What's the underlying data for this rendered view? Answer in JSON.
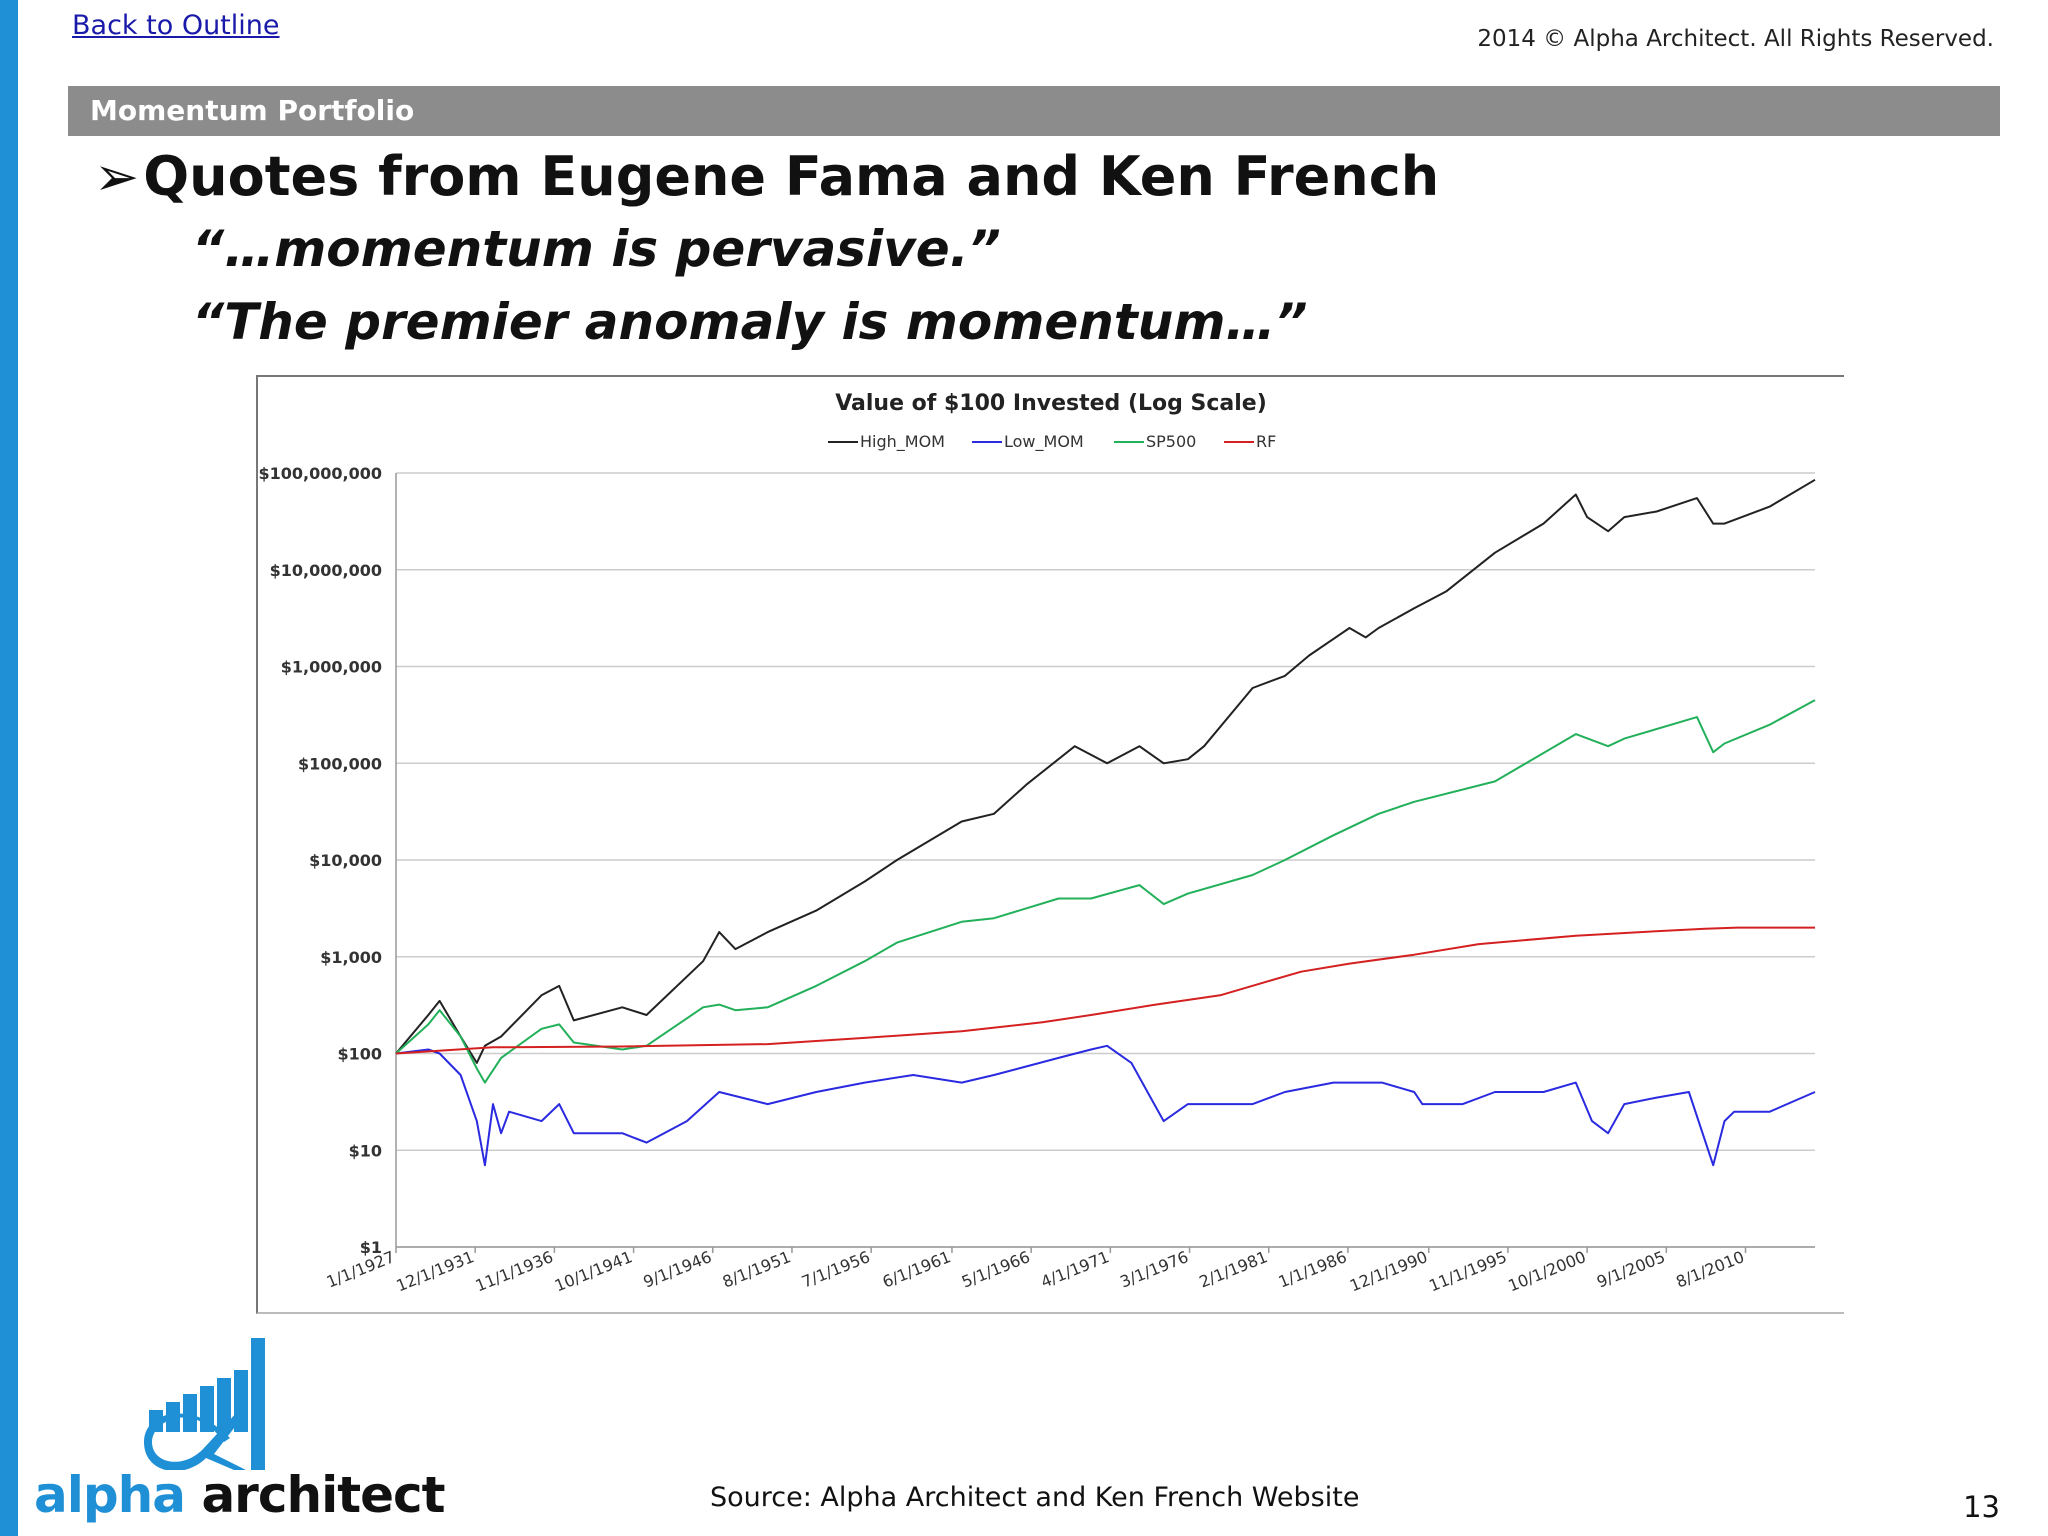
{
  "header": {
    "back_link": "Back to Outline",
    "copyright": "2014 © Alpha Architect. All Rights Reserved."
  },
  "section": {
    "title": "Momentum Portfolio"
  },
  "content": {
    "bullet": "➢",
    "heading": "Quotes from Eugene Fama and Ken French",
    "quote1": "“…momentum is pervasive.”",
    "quote2": "“The premier anomaly is momentum…”"
  },
  "footer": {
    "source": "Source: Alpha Architect and Ken French Website",
    "page_number": "13",
    "logo_alpha": "alpha",
    "logo_architect": "architect"
  },
  "colors": {
    "accent": "#1f8fd6",
    "section_bar": "#8c8c8c",
    "High_MOM": "#222222",
    "Low_MOM": "#2a2ae0",
    "SP500": "#23b05a",
    "RF": "#d42020"
  },
  "chart_data": {
    "type": "line",
    "title": "Value of $100 Invested (Log Scale)",
    "y_scale": "log",
    "ylim": [
      1,
      100000000
    ],
    "y_ticks": [
      {
        "value": 100000000,
        "label": "$100,000,000"
      },
      {
        "value": 10000000,
        "label": "$10,000,000"
      },
      {
        "value": 1000000,
        "label": "$1,000,000"
      },
      {
        "value": 100000,
        "label": "$100,000"
      },
      {
        "value": 10000,
        "label": "$10,000"
      },
      {
        "value": 1000,
        "label": "$1,000"
      },
      {
        "value": 100,
        "label": "$100"
      },
      {
        "value": 10,
        "label": "$10"
      },
      {
        "value": 1,
        "label": "$1"
      }
    ],
    "xlim": [
      1927.0,
      2014.8
    ],
    "x_ticks": [
      {
        "value": 1927.0,
        "label": "1/1/1927"
      },
      {
        "value": 1931.9,
        "label": "12/1/1931"
      },
      {
        "value": 1936.8,
        "label": "11/1/1936"
      },
      {
        "value": 1941.7,
        "label": "10/1/1941"
      },
      {
        "value": 1946.6,
        "label": "9/1/1946"
      },
      {
        "value": 1951.5,
        "label": "8/1/1951"
      },
      {
        "value": 1956.4,
        "label": "7/1/1956"
      },
      {
        "value": 1961.4,
        "label": "6/1/1961"
      },
      {
        "value": 1966.3,
        "label": "5/1/1966"
      },
      {
        "value": 1971.2,
        "label": "4/1/1971"
      },
      {
        "value": 1976.1,
        "label": "3/1/1976"
      },
      {
        "value": 1981.0,
        "label": "2/1/1981"
      },
      {
        "value": 1985.9,
        "label": "1/1/1986"
      },
      {
        "value": 1990.9,
        "label": "12/1/1990"
      },
      {
        "value": 1995.8,
        "label": "11/1/1995"
      },
      {
        "value": 2000.7,
        "label": "10/1/2000"
      },
      {
        "value": 2005.6,
        "label": "9/1/2005"
      },
      {
        "value": 2010.5,
        "label": "8/1/2010"
      }
    ],
    "legend_position": "top-center",
    "grid": true,
    "series": [
      {
        "name": "High_MOM",
        "x": [
          1927.0,
          1929.0,
          1929.7,
          1931.0,
          1932.0,
          1932.5,
          1933.5,
          1936.0,
          1937.1,
          1938.0,
          1941.0,
          1942.5,
          1946.0,
          1947.0,
          1948.0,
          1950.0,
          1953.0,
          1956.0,
          1958.0,
          1962.0,
          1964.0,
          1966.0,
          1969.0,
          1971.0,
          1973.0,
          1974.5,
          1976.0,
          1977.0,
          1980.0,
          1982.0,
          1983.5,
          1986.0,
          1987.0,
          1987.8,
          1990.0,
          1992.0,
          1995.0,
          1998.0,
          2000.0,
          2000.7,
          2002.0,
          2003.0,
          2005.0,
          2007.5,
          2008.5,
          2009.2,
          2012.0,
          2014.8
        ],
        "y": [
          100,
          250,
          350,
          150,
          80,
          120,
          150,
          400,
          500,
          220,
          300,
          250,
          900,
          1800,
          1200,
          1800,
          3000,
          6000,
          10000,
          25000,
          30000,
          60000,
          150000,
          100000,
          150000,
          100000,
          110000,
          150000,
          600000,
          800000,
          1300000,
          2500000,
          2000000,
          2500000,
          4000000,
          6000000,
          15000000,
          30000000,
          60000000,
          35000000,
          25000000,
          35000000,
          40000000,
          55000000,
          30000000,
          30000000,
          45000000,
          85000000
        ]
      },
      {
        "name": "Low_MOM",
        "x": [
          1927.0,
          1929.0,
          1929.7,
          1931.0,
          1932.0,
          1932.5,
          1933.0,
          1933.5,
          1934.0,
          1936.0,
          1937.1,
          1938.0,
          1941.0,
          1942.5,
          1945.0,
          1947.0,
          1950.0,
          1953.0,
          1956.0,
          1959.0,
          1962.0,
          1964.0,
          1968.0,
          1970.0,
          1971.0,
          1972.5,
          1973.5,
          1974.5,
          1976.0,
          1980.0,
          1982.0,
          1985.0,
          1988.0,
          1990.0,
          1990.5,
          1993.0,
          1995.0,
          1998.0,
          2000.0,
          2001.0,
          2002.0,
          2003.0,
          2005.0,
          2007.0,
          2008.5,
          2009.2,
          2009.8,
          2012.0,
          2014.8
        ],
        "y": [
          100,
          110,
          100,
          60,
          20,
          7,
          30,
          15,
          25,
          20,
          30,
          15,
          15,
          12,
          20,
          40,
          30,
          40,
          50,
          60,
          50,
          60,
          90,
          110,
          120,
          80,
          40,
          20,
          30,
          30,
          40,
          50,
          50,
          40,
          30,
          30,
          40,
          40,
          50,
          20,
          15,
          30,
          35,
          40,
          7,
          20,
          25,
          25,
          40
        ]
      },
      {
        "name": "SP500",
        "x": [
          1927.0,
          1929.0,
          1929.7,
          1931.0,
          1932.0,
          1932.5,
          1933.5,
          1936.0,
          1937.1,
          1938.0,
          1941.0,
          1942.5,
          1946.0,
          1947.0,
          1948.0,
          1950.0,
          1953.0,
          1956.0,
          1958.0,
          1962.0,
          1964.0,
          1968.0,
          1970.0,
          1973.0,
          1974.5,
          1976.0,
          1980.0,
          1982.0,
          1985.0,
          1987.8,
          1990.0,
          1995.0,
          2000.0,
          2002.0,
          2003.0,
          2007.5,
          2008.5,
          2009.2,
          2012.0,
          2014.8
        ],
        "y": [
          100,
          200,
          280,
          150,
          70,
          50,
          90,
          180,
          200,
          130,
          110,
          120,
          300,
          320,
          280,
          300,
          500,
          900,
          1400,
          2300,
          2500,
          4000,
          4000,
          5500,
          3500,
          4500,
          7000,
          10000,
          18000,
          30000,
          40000,
          65000,
          200000,
          150000,
          180000,
          300000,
          130000,
          160000,
          250000,
          450000
        ]
      },
      {
        "name": "RF",
        "x": [
          1927.0,
          1933.0,
          1941.0,
          1950.0,
          1956.0,
          1962.0,
          1967.0,
          1970.0,
          1974.0,
          1978.0,
          1981.0,
          1983.0,
          1986.0,
          1990.0,
          1994.0,
          2000.0,
          2004.0,
          2008.0,
          2010.0,
          2014.8
        ],
        "y": [
          100,
          116,
          118,
          125,
          145,
          170,
          210,
          250,
          320,
          400,
          560,
          700,
          850,
          1050,
          1350,
          1650,
          1800,
          1950,
          2000,
          2000
        ]
      }
    ]
  }
}
